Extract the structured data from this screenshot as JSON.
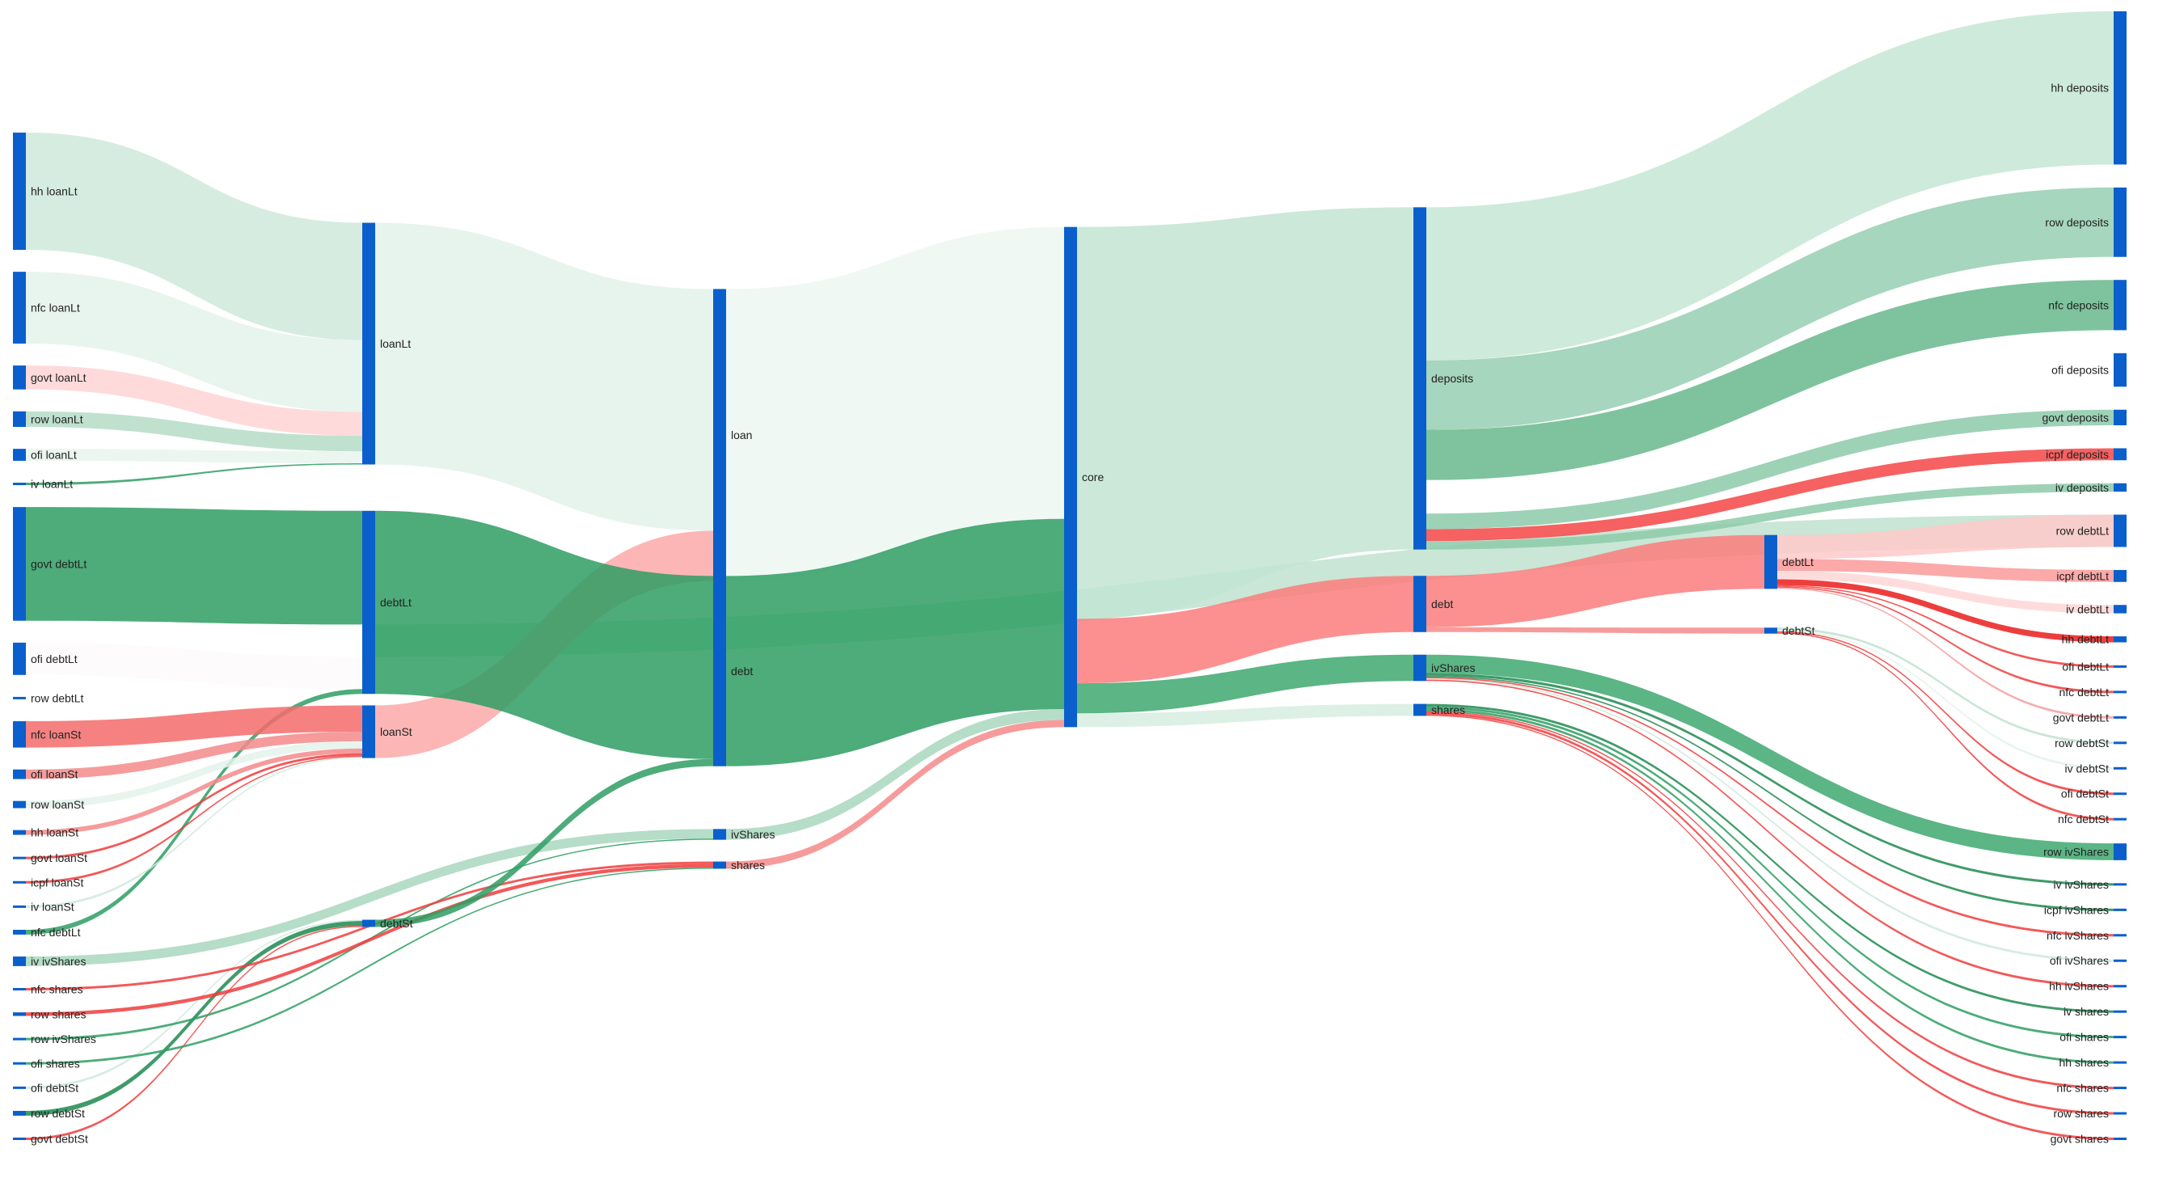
{
  "chart_data": {
    "type": "sankey",
    "title": "",
    "colors": {
      "node": "#0a5fcc",
      "link_base": "#2e9e63",
      "link_increase": "#2e9e63",
      "link_decrease": "#f03c3c"
    },
    "nodes": [
      {
        "id": "hh loanLt",
        "label": "hh loanLt",
        "column": 0
      },
      {
        "id": "nfc loanLt",
        "label": "nfc loanLt",
        "column": 0
      },
      {
        "id": "govt loanLt",
        "label": "govt loanLt",
        "column": 0
      },
      {
        "id": "row loanLt",
        "label": "row loanLt",
        "column": 0
      },
      {
        "id": "ofi loanLt",
        "label": "ofi loanLt",
        "column": 0
      },
      {
        "id": "iv loanLt",
        "label": "iv loanLt",
        "column": 0
      },
      {
        "id": "govt debtLt",
        "label": "govt debtLt",
        "column": 0
      },
      {
        "id": "ofi debtLt",
        "label": "ofi debtLt",
        "column": 0
      },
      {
        "id": "row debtLt",
        "label": "row debtLt",
        "column": 0
      },
      {
        "id": "nfc loanSt",
        "label": "nfc loanSt",
        "column": 0
      },
      {
        "id": "ofi loanSt",
        "label": "ofi loanSt",
        "column": 0
      },
      {
        "id": "row loanSt",
        "label": "row loanSt",
        "column": 0
      },
      {
        "id": "hh loanSt",
        "label": "hh loanSt",
        "column": 0
      },
      {
        "id": "govt loanSt",
        "label": "govt loanSt",
        "column": 0
      },
      {
        "id": "icpf loanSt",
        "label": "icpf loanSt",
        "column": 0
      },
      {
        "id": "iv loanSt",
        "label": "iv loanSt",
        "column": 0
      },
      {
        "id": "nfc debtLt",
        "label": "nfc debtLt",
        "column": 0
      },
      {
        "id": "iv ivShares",
        "label": "iv ivShares",
        "column": 0
      },
      {
        "id": "nfc shares",
        "label": "nfc shares",
        "column": 0
      },
      {
        "id": "row shares",
        "label": "row shares",
        "column": 0
      },
      {
        "id": "row ivShares",
        "label": "row ivShares",
        "column": 0
      },
      {
        "id": "ofi shares",
        "label": "ofi shares",
        "column": 0
      },
      {
        "id": "ofi debtSt",
        "label": "ofi debtSt",
        "column": 0
      },
      {
        "id": "row debtSt",
        "label": "row debtSt",
        "column": 0
      },
      {
        "id": "govt debtSt",
        "label": "govt debtSt",
        "column": 0
      },
      {
        "id": "loanLt",
        "label": "loanLt",
        "column": 1
      },
      {
        "id": "debtLt",
        "label": "debtLt",
        "column": 1
      },
      {
        "id": "loanSt",
        "label": "loanSt",
        "column": 1
      },
      {
        "id": "debtSt",
        "label": "debtSt",
        "column": 1
      },
      {
        "id": "loan",
        "label": "loan",
        "column": 2
      },
      {
        "id": "debt",
        "label": "debt",
        "column": 2
      },
      {
        "id": "ivShares",
        "label": "ivShares",
        "column": 2
      },
      {
        "id": "shares",
        "label": "shares",
        "column": 2
      },
      {
        "id": "core",
        "label": "core",
        "column": 3
      },
      {
        "id": "deposits",
        "label": "deposits",
        "column": 4
      },
      {
        "id": "debt_r",
        "label": "debt",
        "column": 4
      },
      {
        "id": "ivShares_r",
        "label": "ivShares",
        "column": 4
      },
      {
        "id": "shares_r",
        "label": "shares",
        "column": 4
      },
      {
        "id": "debtLt_r",
        "label": "debtLt",
        "column": 5
      },
      {
        "id": "debtSt_r",
        "label": "debtSt",
        "column": 5
      },
      {
        "id": "hh deposits",
        "label": "hh deposits",
        "column": 6
      },
      {
        "id": "row deposits",
        "label": "row deposits",
        "column": 6
      },
      {
        "id": "nfc deposits",
        "label": "nfc deposits",
        "column": 6
      },
      {
        "id": "ofi deposits",
        "label": "ofi deposits",
        "column": 6
      },
      {
        "id": "govt deposits",
        "label": "govt deposits",
        "column": 6
      },
      {
        "id": "icpf deposits",
        "label": "icpf deposits",
        "column": 6
      },
      {
        "id": "iv deposits",
        "label": "iv deposits",
        "column": 6
      },
      {
        "id": "row debtLt",
        "label": "row debtLt",
        "column": 6
      },
      {
        "id": "icpf debtLt",
        "label": "icpf debtLt",
        "column": 6
      },
      {
        "id": "iv debtLt",
        "label": "iv debtLt",
        "column": 6
      },
      {
        "id": "hh debtLt",
        "label": "hh debtLt",
        "column": 6
      },
      {
        "id": "ofi debtLt_r",
        "label": "ofi debtLt",
        "column": 6
      },
      {
        "id": "nfc debtLt_r",
        "label": "nfc debtLt",
        "column": 6
      },
      {
        "id": "govt debtLt_r",
        "label": "govt debtLt",
        "column": 6
      },
      {
        "id": "row debtSt_r",
        "label": "row debtSt",
        "column": 6
      },
      {
        "id": "iv debtSt",
        "label": "iv debtSt",
        "column": 6
      },
      {
        "id": "ofi debtSt_r",
        "label": "ofi debtSt",
        "column": 6
      },
      {
        "id": "nfc debtSt",
        "label": "nfc debtSt",
        "column": 6
      },
      {
        "id": "row ivShares_r",
        "label": "row ivShares",
        "column": 6
      },
      {
        "id": "iv ivShares_r",
        "label": "iv ivShares",
        "column": 6
      },
      {
        "id": "icpf ivShares",
        "label": "icpf ivShares",
        "column": 6
      },
      {
        "id": "nfc ivShares",
        "label": "nfc ivShares",
        "column": 6
      },
      {
        "id": "ofi ivShares",
        "label": "ofi ivShares",
        "column": 6
      },
      {
        "id": "hh ivShares",
        "label": "hh ivShares",
        "column": 6
      },
      {
        "id": "iv shares",
        "label": "iv shares",
        "column": 6
      },
      {
        "id": "ofi shares_r",
        "label": "ofi shares",
        "column": 6
      },
      {
        "id": "hh shares",
        "label": "hh shares",
        "column": 6
      },
      {
        "id": "nfc shares_r",
        "label": "nfc shares",
        "column": 6
      },
      {
        "id": "row shares_r",
        "label": "row shares",
        "column": 6
      },
      {
        "id": "govt shares",
        "label": "govt shares",
        "column": 6
      }
    ],
    "links": [
      {
        "source": "hh loanLt",
        "target": "loanLt",
        "value": 98,
        "color": "#cfe9dc"
      },
      {
        "source": "nfc loanLt",
        "target": "loanLt",
        "value": 60,
        "color": "#e4f2eb"
      },
      {
        "source": "govt loanLt",
        "target": "loanLt",
        "value": 20,
        "color": "#ffd4d4"
      },
      {
        "source": "row loanLt",
        "target": "loanLt",
        "value": 13,
        "color": "#b5dcc6"
      },
      {
        "source": "ofi loanLt",
        "target": "loanLt",
        "value": 10,
        "color": "#e8f4ee"
      },
      {
        "source": "iv loanLt",
        "target": "loanLt",
        "value": 1,
        "color": "#2e9e63"
      },
      {
        "source": "govt debtLt",
        "target": "debtLt",
        "value": 95,
        "color": "#2e9e63"
      },
      {
        "source": "ofi debtLt",
        "target": "debtLt",
        "value": 27,
        "color": "#fdfafa"
      },
      {
        "source": "row debtLt",
        "target": "debtLt",
        "value": 27,
        "color": "#bfe2cf"
      },
      {
        "source": "nfc debtLt",
        "target": "debtLt",
        "value": 4,
        "color": "#2e9e63"
      },
      {
        "source": "nfc loanSt",
        "target": "loanSt",
        "value": 22,
        "color": "#f56b6b"
      },
      {
        "source": "ofi loanSt",
        "target": "loanSt",
        "value": 8,
        "color": "#f58a8a"
      },
      {
        "source": "row loanSt",
        "target": "loanSt",
        "value": 6,
        "color": "#e4f2eb"
      },
      {
        "source": "hh loanSt",
        "target": "loanSt",
        "value": 4,
        "color": "#f58a8a"
      },
      {
        "source": "govt loanSt",
        "target": "loanSt",
        "value": 2,
        "color": "#f03c3c"
      },
      {
        "source": "icpf loanSt",
        "target": "loanSt",
        "value": 1,
        "color": "#f03c3c"
      },
      {
        "source": "iv loanSt",
        "target": "loanSt",
        "value": 1,
        "color": "#cfe9dc"
      },
      {
        "source": "row debtSt",
        "target": "debtSt",
        "value": 4,
        "color": "#1f8a50"
      },
      {
        "source": "ofi debtSt",
        "target": "debtSt",
        "value": 1,
        "color": "#cfe9dc"
      },
      {
        "source": "govt debtSt",
        "target": "debtSt",
        "value": 1,
        "color": "#f03c3c"
      },
      {
        "source": "iv ivShares",
        "target": "ivShares",
        "value": 8,
        "color": "#a9d7bd"
      },
      {
        "source": "row ivShares",
        "target": "ivShares",
        "value": 1,
        "color": "#2e9e63"
      },
      {
        "source": "nfc shares",
        "target": "shares",
        "value": 2,
        "color": "#f03c3c"
      },
      {
        "source": "row shares",
        "target": "shares",
        "value": 3,
        "color": "#f03c3c"
      },
      {
        "source": "ofi shares",
        "target": "shares",
        "value": 1,
        "color": "#2e9e63"
      },
      {
        "source": "loanLt",
        "target": "loan",
        "value": 202,
        "color": "#e3f2ea"
      },
      {
        "source": "loanSt",
        "target": "loan",
        "value": 42,
        "color": "#fba9a9"
      },
      {
        "source": "debtLt",
        "target": "debt",
        "value": 153,
        "color": "#2e9e63"
      },
      {
        "source": "debtSt",
        "target": "debt",
        "value": 6,
        "color": "#2e9e63"
      },
      {
        "source": "loan",
        "target": "core",
        "value": 244,
        "color": "#edf7f2"
      },
      {
        "source": "debt",
        "target": "core",
        "value": 159,
        "color": "#2e9e63"
      },
      {
        "source": "ivShares",
        "target": "core",
        "value": 9,
        "color": "#a9d7bd"
      },
      {
        "source": "shares",
        "target": "core",
        "value": 6,
        "color": "#f58a8a"
      },
      {
        "source": "core",
        "target": "deposits",
        "value": 286,
        "color": "#c2e4d2"
      },
      {
        "source": "core",
        "target": "debt_r",
        "value": 47,
        "color": "#fb7d7d"
      },
      {
        "source": "core",
        "target": "ivShares_r",
        "value": 22,
        "color": "#3ea870"
      },
      {
        "source": "core",
        "target": "shares_r",
        "value": 10,
        "color": "#d6ede1"
      },
      {
        "source": "deposits",
        "target": "hh deposits",
        "value": 128,
        "color": "#c6e6d4"
      },
      {
        "source": "deposits",
        "target": "row deposits",
        "value": 58,
        "color": "#96cfb1"
      },
      {
        "source": "deposits",
        "target": "nfc deposits",
        "value": 42,
        "color": "#67b98c"
      },
      {
        "source": "deposits",
        "target": "ofi deposits",
        "value": 28,
        "color": "#ffffff"
      },
      {
        "source": "deposits",
        "target": "govt deposits",
        "value": 13,
        "color": "#8ccaa9"
      },
      {
        "source": "deposits",
        "target": "icpf deposits",
        "value": 10,
        "color": "#f54545"
      },
      {
        "source": "deposits",
        "target": "iv deposits",
        "value": 7,
        "color": "#8ccaa9"
      },
      {
        "source": "debt_r",
        "target": "debtLt_r",
        "value": 43,
        "color": "#fb7d7d"
      },
      {
        "source": "debt_r",
        "target": "debtSt_r",
        "value": 4,
        "color": "#f58a8a"
      },
      {
        "source": "debtLt_r",
        "target": "row debtLt",
        "value": 20,
        "color": "#ffc9c9"
      },
      {
        "source": "debtLt_r",
        "target": "icpf debtLt",
        "value": 10,
        "color": "#fb9a9a"
      },
      {
        "source": "debtLt_r",
        "target": "iv debtLt",
        "value": 7,
        "color": "#ffd6d6"
      },
      {
        "source": "debtLt_r",
        "target": "hh debtLt",
        "value": 5,
        "color": "#ea1c1c"
      },
      {
        "source": "debtLt_r",
        "target": "ofi debtLt_r",
        "value": 1,
        "color": "#f03c3c"
      },
      {
        "source": "debtLt_r",
        "target": "nfc debtLt_r",
        "value": 1,
        "color": "#f03c3c"
      },
      {
        "source": "debtLt_r",
        "target": "govt debtLt_r",
        "value": 1,
        "color": "#f5a0a0"
      },
      {
        "source": "debtSt_r",
        "target": "row debtSt_r",
        "value": 2,
        "color": "#bfe2cf"
      },
      {
        "source": "debtSt_r",
        "target": "iv debtSt",
        "value": 1,
        "color": "#e4f2eb"
      },
      {
        "source": "debtSt_r",
        "target": "ofi debtSt_r",
        "value": 1,
        "color": "#f03c3c"
      },
      {
        "source": "debtSt_r",
        "target": "nfc debtSt",
        "value": 1,
        "color": "#f03c3c"
      },
      {
        "source": "ivShares_r",
        "target": "row ivShares_r",
        "value": 14,
        "color": "#3ea870"
      },
      {
        "source": "ivShares_r",
        "target": "iv ivShares_r",
        "value": 2,
        "color": "#1f8a50"
      },
      {
        "source": "ivShares_r",
        "target": "icpf ivShares",
        "value": 1,
        "color": "#1f8a50"
      },
      {
        "source": "ivShares_r",
        "target": "nfc ivShares",
        "value": 1,
        "color": "#f03c3c"
      },
      {
        "source": "ivShares_r",
        "target": "ofi ivShares",
        "value": 1,
        "color": "#cfe9dc"
      },
      {
        "source": "ivShares_r",
        "target": "hh ivShares",
        "value": 1,
        "color": "#f03c3c"
      },
      {
        "source": "shares_r",
        "target": "iv shares",
        "value": 2,
        "color": "#1f8a50"
      },
      {
        "source": "shares_r",
        "target": "ofi shares_r",
        "value": 2,
        "color": "#2e9e63"
      },
      {
        "source": "shares_r",
        "target": "hh shares",
        "value": 2,
        "color": "#2e9e63"
      },
      {
        "source": "shares_r",
        "target": "nfc shares_r",
        "value": 1,
        "color": "#f03c3c"
      },
      {
        "source": "shares_r",
        "target": "row shares_r",
        "value": 2,
        "color": "#f03c3c"
      },
      {
        "source": "shares_r",
        "target": "govt shares",
        "value": 1,
        "color": "#f03c3c"
      }
    ]
  }
}
